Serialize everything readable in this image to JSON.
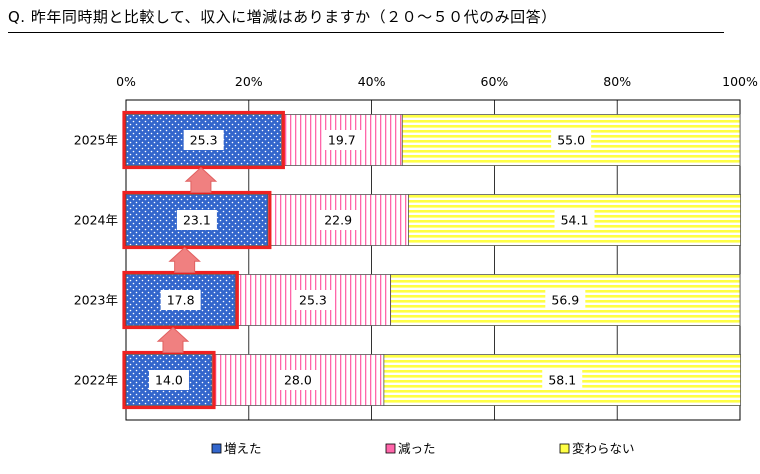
{
  "chart_data": {
    "type": "bar",
    "orientation": "horizontal",
    "stacked": true,
    "title": "Q. 昨年同時期と比較して、収入に増減はありますか（２０～５０代のみ回答）",
    "categories": [
      "2025年",
      "2024年",
      "2023年",
      "2022年"
    ],
    "series": [
      {
        "name": "増えた",
        "values": [
          25.3,
          23.1,
          17.8,
          14.0
        ],
        "labels": [
          "25.3",
          "23.1",
          "17.8",
          "14.0"
        ],
        "color": "#3366cc",
        "pattern": "dots"
      },
      {
        "name": "減った",
        "values": [
          19.7,
          22.9,
          25.3,
          28.0
        ],
        "labels": [
          "19.7",
          "22.9",
          "25.3",
          "28.0"
        ],
        "color": "#ff66aa",
        "pattern": "vertical-stripes"
      },
      {
        "name": "変わらない",
        "values": [
          55.0,
          54.1,
          56.9,
          58.1
        ],
        "labels": [
          "55.0",
          "54.1",
          "56.9",
          "58.1"
        ],
        "color": "#ffff44",
        "pattern": "horizontal-stripes"
      }
    ],
    "x_ticks": [
      "0%",
      "20%",
      "40%",
      "60%",
      "80%",
      "100%"
    ],
    "x_range": [
      0,
      100
    ],
    "grid": true,
    "legend_position": "bottom",
    "highlight_series": "増えた",
    "highlight_color": "#ee2222",
    "trend_arrows": true,
    "arrow_color": "#f08080"
  }
}
